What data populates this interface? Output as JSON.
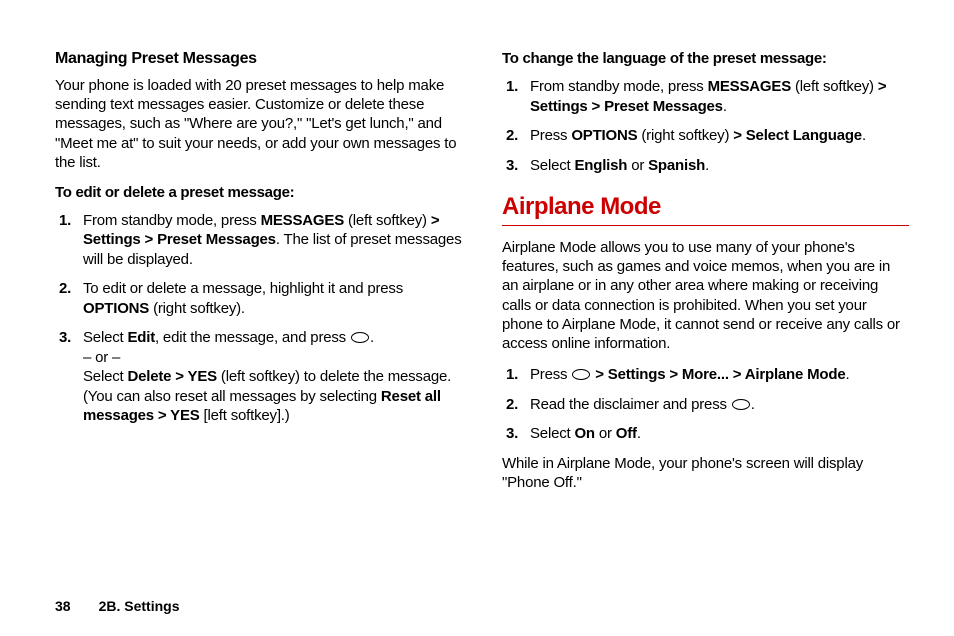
{
  "left": {
    "heading": "Managing Preset Messages",
    "intro": "Your phone is loaded with 20 preset messages to help make sending text messages easier. Customize or delete these messages, such as \"Where are you?,\" \"Let's get lunch,\" and \"Meet me at\" to suit your needs, or add your own messages to the list.",
    "instruction": "To edit or delete a preset message:",
    "step1_a": "From standby mode, press ",
    "step1_b": "MESSAGES",
    "step1_c": " (left softkey) ",
    "step1_d": "> Settings > Preset Messages",
    "step1_e": ". The list of preset messages will be displayed.",
    "step2_a": "To edit or delete a message, highlight it and press ",
    "step2_b": "OPTIONS",
    "step2_c": " (right softkey).",
    "step3_a": "Select ",
    "step3_b": "Edit",
    "step3_c": ", edit the message, and press ",
    "step3_d": ".",
    "step3_or": "– or –",
    "step3_e": "Select ",
    "step3_f": "Delete > YES",
    "step3_g": " (left softkey) to delete the message. (You can also reset all messages by selecting ",
    "step3_h": "Reset all messages > YES",
    "step3_i": " [left softkey].)"
  },
  "right": {
    "instruction": "To change the language of the preset message:",
    "r1_a": "From standby mode, press ",
    "r1_b": "MESSAGES",
    "r1_c": " (left softkey) ",
    "r1_d": "> Settings > Preset Messages",
    "r1_e": ".",
    "r2_a": "Press ",
    "r2_b": "OPTIONS",
    "r2_c": " (right softkey) ",
    "r2_d": "> Select Language",
    "r2_e": ".",
    "r3_a": "Select ",
    "r3_b": "English",
    "r3_c": " or ",
    "r3_d": "Spanish",
    "r3_e": ".",
    "section": "Airplane Mode",
    "airplane_intro": "Airplane Mode allows you to use many of your phone's features, such as games and voice memos, when you are in an airplane or in any other area where making or receiving calls or data connection is prohibited. When you set your phone to Airplane Mode, it cannot send or receive any calls or access online information.",
    "a1_a": "Press ",
    "a1_b": " > Settings > More... > Airplane Mode",
    "a1_c": ".",
    "a2_a": "Read the disclaimer and press ",
    "a2_b": ".",
    "a3_a": "Select ",
    "a3_b": "On",
    "a3_c": " or ",
    "a3_d": "Off",
    "a3_e": ".",
    "closing": "While in Airplane Mode, your phone's screen will display \"Phone Off.\""
  },
  "footer": {
    "page": "38",
    "section": "2B. Settings"
  },
  "colors": {
    "accent": "#c00"
  }
}
